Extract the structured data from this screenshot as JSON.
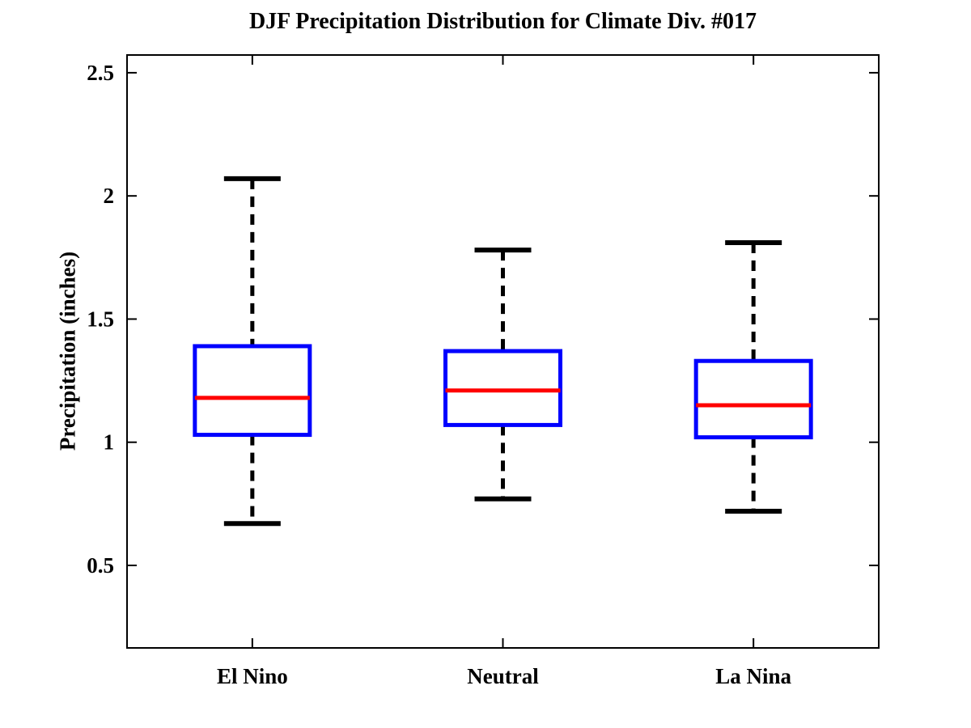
{
  "figure": {
    "background": "#FFFFFF"
  },
  "chart_data": {
    "type": "boxplot",
    "title": "DJF Precipitation Distribution for Climate Div. #017",
    "ylabel": "Precipitation (inches)",
    "xlabel": "",
    "categories": [
      "El Nino",
      "Neutral",
      "La Nina"
    ],
    "series": [
      {
        "name": "El Nino",
        "whisker_low": 0.67,
        "q1": 1.03,
        "median": 1.18,
        "q3": 1.39,
        "whisker_high": 2.07,
        "outliers": []
      },
      {
        "name": "Neutral",
        "whisker_low": 0.77,
        "q1": 1.07,
        "median": 1.21,
        "q3": 1.37,
        "whisker_high": 1.78,
        "outliers": []
      },
      {
        "name": "La Nina",
        "whisker_low": 0.72,
        "q1": 1.02,
        "median": 1.15,
        "q3": 1.33,
        "whisker_high": 1.81,
        "outliers": []
      }
    ],
    "yticks": [
      0.5,
      1,
      1.5,
      2,
      2.5
    ],
    "ytick_labels": [
      "0.5",
      "1",
      "1.5",
      "2",
      "2.5"
    ],
    "ylim": [
      0.165,
      2.572
    ],
    "grid": false,
    "legend_position": "none",
    "colors": {
      "box": "#0000FF",
      "median": "#FF0000",
      "whisker": "#000000",
      "axis": "#000000",
      "background": "#FFFFFF"
    }
  }
}
